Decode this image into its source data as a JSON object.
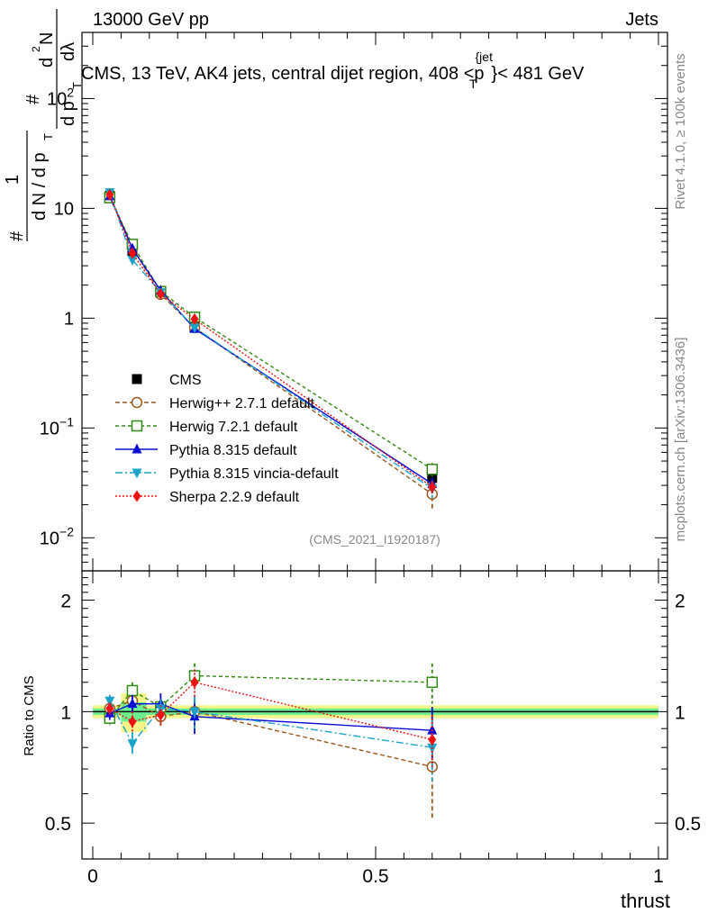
{
  "header": {
    "energy_label": "13000 GeV pp",
    "category_label": "Jets",
    "title_main": "CMS, 13 TeV, AK4 jets, central dijet region, 408 <p",
    "title_sub": "T",
    "title_sup": "{jet",
    "title_end": "}< 481 GeV"
  },
  "side_labels": {
    "rivet": "Rivet 4.1.0, ≥ 100k events",
    "mcplots": "mcplots.cern.ch [arXiv:1306.3436]"
  },
  "analysis_id": "(CMS_2021_I1920187)",
  "y_axis_main": {
    "parts": [
      "#",
      "1",
      "d N / d p",
      "T",
      "#",
      "d p",
      "T",
      "d",
      "2",
      "N",
      "dλ"
    ]
  },
  "y_axis_ratio_label": "Ratio to CMS",
  "x_axis_label": "thrust",
  "colors": {
    "cms": "#000000",
    "herwigpp": "#99581c",
    "herwig7": "#338a13",
    "pythia": "#0b0bd6",
    "vincia": "#1aa3c9",
    "sherpa": "#ee1111",
    "band_inner": "#6cf08f",
    "band_outer": "#f5f58a"
  },
  "chart_data": [
    {
      "type": "line",
      "panel": "main",
      "yscale": "log",
      "xlim": [
        0,
        1
      ],
      "ylim": [
        0.005,
        400
      ],
      "x_ticks": [
        0,
        0.5,
        1
      ],
      "y_ticks": [
        {
          "value": 0.01,
          "mantissa": "10",
          "exp": "−2"
        },
        {
          "value": 0.1,
          "mantissa": "10",
          "exp": "−1"
        },
        {
          "value": 1,
          "mantissa": "1",
          "exp": ""
        },
        {
          "value": 10,
          "mantissa": "10",
          "exp": ""
        },
        {
          "value": 100,
          "mantissa": "10",
          "exp": "2"
        }
      ],
      "x": [
        0.03,
        0.07,
        0.12,
        0.18,
        0.6
      ],
      "series": [
        {
          "key": "cms",
          "name": "CMS",
          "values": [
            13.0,
            4.1,
            1.7,
            0.82,
            0.035
          ],
          "err": [
            0.6,
            0.25,
            0.1,
            0.06,
            0.004
          ],
          "marker": "square-filled",
          "dash": "none"
        },
        {
          "key": "herwigpp",
          "name": "Herwig++ 2.7.1 default",
          "values": [
            13.2,
            4.4,
            1.65,
            0.82,
            0.025
          ],
          "err": [
            0.5,
            0.3,
            0.1,
            0.08,
            0.007
          ],
          "marker": "circle-open",
          "dash": "5,3"
        },
        {
          "key": "herwig7",
          "name": "Herwig 7.2.1 default",
          "values": [
            12.5,
            4.7,
            1.75,
            1.02,
            0.042
          ],
          "err": [
            0.5,
            0.3,
            0.1,
            0.08,
            0.006
          ],
          "marker": "square-open",
          "dash": "4,3"
        },
        {
          "key": "pythia",
          "name": "Pythia 8.315 default",
          "values": [
            12.9,
            4.3,
            1.78,
            0.8,
            0.031
          ],
          "err": [
            0.5,
            0.3,
            0.1,
            0.07,
            0.004
          ],
          "marker": "triangle-up",
          "dash": "none"
        },
        {
          "key": "vincia",
          "name": "Pythia 8.315 vincia-default",
          "values": [
            14.0,
            3.4,
            1.72,
            0.82,
            0.028
          ],
          "err": [
            0.6,
            0.3,
            0.1,
            0.07,
            0.005
          ],
          "marker": "triangle-down",
          "dash": "8,3,2,3"
        },
        {
          "key": "sherpa",
          "name": "Sherpa 2.2.9 default",
          "values": [
            13.3,
            3.9,
            1.66,
            0.98,
            0.029
          ],
          "err": [
            0.5,
            0.3,
            0.1,
            0.07,
            0.004
          ],
          "marker": "diamond",
          "dash": "2,2"
        }
      ]
    },
    {
      "type": "line",
      "panel": "ratio",
      "yscale": "log",
      "xlim": [
        0,
        1
      ],
      "ylim": [
        0.4,
        2.4
      ],
      "x_ticks": [
        0,
        0.5,
        1
      ],
      "y_ticks": [
        {
          "value": 0.5,
          "label": "0.5"
        },
        {
          "value": 1,
          "label": "1"
        },
        {
          "value": 2,
          "label": "2"
        }
      ],
      "x": [
        0.03,
        0.07,
        0.12,
        0.18,
        0.6
      ],
      "band_x": [
        0,
        0.05,
        0.095,
        0.15,
        0.21,
        1
      ],
      "band_inner": [
        0.02,
        0.06,
        0.02,
        0.02,
        0.02
      ],
      "band_outer": [
        0.04,
        0.12,
        0.04,
        0.04,
        0.04
      ],
      "series": [
        {
          "key": "herwigpp",
          "values": [
            1.02,
            1.07,
            0.97,
            1.0,
            0.71
          ],
          "err": [
            0.04,
            0.06,
            0.06,
            0.1,
            0.2
          ],
          "marker": "circle-open",
          "dash": "5,3"
        },
        {
          "key": "herwig7",
          "values": [
            0.96,
            1.14,
            1.03,
            1.25,
            1.2
          ],
          "err": [
            0.04,
            0.06,
            0.06,
            0.1,
            0.15
          ],
          "marker": "square-open",
          "dash": "4,3"
        },
        {
          "key": "pythia",
          "values": [
            0.99,
            1.05,
            1.05,
            0.97,
            0.89
          ],
          "err": [
            0.04,
            0.06,
            0.07,
            0.1,
            0.14
          ],
          "marker": "triangle-up",
          "dash": "none"
        },
        {
          "key": "vincia",
          "values": [
            1.07,
            0.82,
            1.02,
            1.0,
            0.8
          ],
          "err": [
            0.04,
            0.06,
            0.06,
            0.1,
            0.15
          ],
          "marker": "triangle-down",
          "dash": "8,3,2,3"
        },
        {
          "key": "sherpa",
          "values": [
            1.02,
            0.94,
            0.98,
            1.2,
            0.84
          ],
          "err": [
            0.04,
            0.06,
            0.06,
            0.1,
            0.14
          ],
          "marker": "diamond",
          "dash": "2,2"
        }
      ]
    }
  ]
}
